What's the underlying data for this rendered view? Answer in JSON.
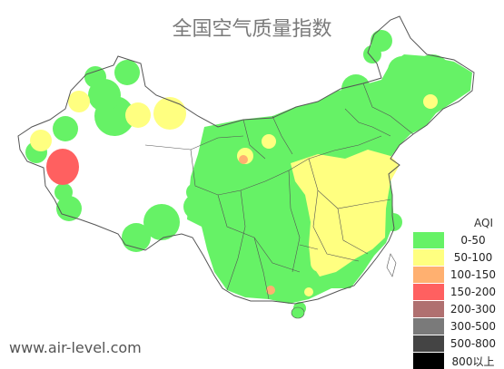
{
  "title": "全国空气质量指数",
  "legend": {
    "title": "AQI",
    "items": [
      {
        "label": "0-50",
        "color": "#66f266"
      },
      {
        "label": "50-100",
        "color": "#ffff80"
      },
      {
        "label": "100-150",
        "color": "#ffb070"
      },
      {
        "label": "150-200",
        "color": "#ff6060"
      },
      {
        "label": "200-300",
        "color": "#b07070"
      },
      {
        "label": "300-500",
        "color": "#7a7a7a"
      },
      {
        "label": "500-800",
        "color": "#444444"
      },
      {
        "label": "800以上",
        "color": "#000000"
      }
    ]
  },
  "watermark": "www.air-level.com"
}
